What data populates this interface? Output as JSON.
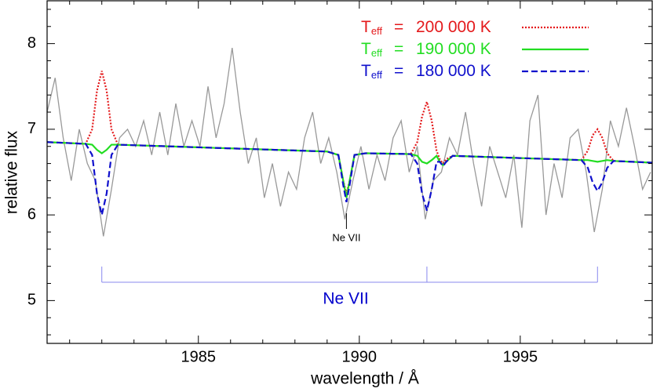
{
  "chart_data": {
    "type": "line",
    "xlabel": "wavelength / Å",
    "ylabel": "relative flux",
    "xlim": [
      1980.3,
      1999.1
    ],
    "ylim": [
      4.5,
      8.5
    ],
    "xticks": [
      1985,
      1990,
      1995
    ],
    "yticks": [
      5,
      6,
      7,
      8
    ],
    "xminorticks": [
      1981,
      1982,
      1983,
      1984,
      1986,
      1987,
      1988,
      1989,
      1991,
      1992,
      1993,
      1994,
      1996,
      1997,
      1998
    ],
    "yminorticks": [
      4.6,
      4.8,
      5.2,
      5.4,
      5.6,
      5.8,
      6.2,
      6.4,
      6.6,
      6.8,
      7.2,
      7.4,
      7.6,
      7.8,
      8.2,
      8.4
    ],
    "legend_prefix": {
      "main": "T",
      "sub": "eff",
      "eq": "="
    },
    "annotations": [
      {
        "text": "Ne VII",
        "x": 1989.6
      }
    ],
    "line_group": {
      "label": "Ne VII",
      "x": [
        1982.0,
        1992.1,
        1997.4
      ],
      "color": "#0000cc"
    },
    "series": [
      {
        "color": "#999999",
        "dash": "solid",
        "x": [
          1980.3,
          1980.55,
          1980.8,
          1981.05,
          1981.3,
          1981.55,
          1981.8,
          1982.05,
          1982.3,
          1982.55,
          1982.8,
          1983.05,
          1983.3,
          1983.55,
          1983.8,
          1984.05,
          1984.3,
          1984.55,
          1984.8,
          1985.05,
          1985.3,
          1985.55,
          1985.8,
          1986.05,
          1986.3,
          1986.55,
          1986.8,
          1987.05,
          1987.3,
          1987.55,
          1987.8,
          1988.05,
          1988.3,
          1988.55,
          1988.8,
          1989.05,
          1989.3,
          1989.55,
          1989.8,
          1990.05,
          1990.3,
          1990.55,
          1990.8,
          1991.05,
          1991.3,
          1991.55,
          1991.8,
          1992.05,
          1992.3,
          1992.55,
          1992.8,
          1993.05,
          1993.3,
          1993.55,
          1993.8,
          1994.05,
          1994.3,
          1994.55,
          1994.8,
          1995.05,
          1995.3,
          1995.55,
          1995.8,
          1996.05,
          1996.3,
          1996.55,
          1996.8,
          1997.05,
          1997.3,
          1997.55,
          1997.8,
          1998.05,
          1998.3,
          1998.55,
          1998.8,
          1999.05
        ],
        "values": [
          7.2,
          7.6,
          6.9,
          6.4,
          7.0,
          6.6,
          6.4,
          5.75,
          6.3,
          6.9,
          7.0,
          6.8,
          7.1,
          6.7,
          7.2,
          6.7,
          7.3,
          6.8,
          7.1,
          6.8,
          7.5,
          6.9,
          7.3,
          7.95,
          7.2,
          6.6,
          6.9,
          6.2,
          6.6,
          6.1,
          6.5,
          6.3,
          6.9,
          7.2,
          6.6,
          6.9,
          6.5,
          5.95,
          6.4,
          6.8,
          6.3,
          6.7,
          6.4,
          6.9,
          7.1,
          6.5,
          6.8,
          5.95,
          6.4,
          6.5,
          6.9,
          6.7,
          7.2,
          6.6,
          6.1,
          6.8,
          6.5,
          6.2,
          6.7,
          5.85,
          7.1,
          7.4,
          6.0,
          6.6,
          6.2,
          6.9,
          7.0,
          6.5,
          5.8,
          6.3,
          7.1,
          6.8,
          7.25,
          6.8,
          6.3,
          6.5
        ]
      },
      {
        "name": "200 000 K",
        "color": "#e41a1c",
        "dash": "dotted",
        "x": [
          1980.3,
          1981.5,
          1981.7,
          1981.85,
          1982.0,
          1982.15,
          1982.3,
          1982.5,
          1989.0,
          1989.35,
          1989.5,
          1989.6,
          1989.7,
          1989.85,
          1990.2,
          1991.6,
          1991.8,
          1991.95,
          1992.1,
          1992.25,
          1992.4,
          1992.5,
          1992.6,
          1992.7,
          1992.9,
          1996.9,
          1997.1,
          1997.25,
          1997.4,
          1997.55,
          1997.7,
          1997.9,
          1999.1
        ],
        "values": [
          6.85,
          6.83,
          7.0,
          7.45,
          7.68,
          7.45,
          7.0,
          6.82,
          6.74,
          6.7,
          6.4,
          6.25,
          6.4,
          6.7,
          6.72,
          6.71,
          6.85,
          7.15,
          7.32,
          7.1,
          6.75,
          6.65,
          6.6,
          6.65,
          6.69,
          6.64,
          6.75,
          6.93,
          7.0,
          6.9,
          6.72,
          6.63,
          6.61
        ]
      },
      {
        "name": "190 000 K",
        "color": "#22dd22",
        "dash": "solid",
        "x": [
          1980.3,
          1981.5,
          1981.7,
          1981.85,
          1982.0,
          1982.15,
          1982.3,
          1982.5,
          1989.0,
          1989.35,
          1989.5,
          1989.6,
          1989.7,
          1989.85,
          1990.2,
          1991.6,
          1991.8,
          1991.95,
          1992.1,
          1992.25,
          1992.4,
          1992.5,
          1992.6,
          1992.7,
          1992.9,
          1996.9,
          1997.1,
          1997.25,
          1997.4,
          1997.55,
          1997.7,
          1997.9,
          1999.1
        ],
        "values": [
          6.85,
          6.83,
          6.82,
          6.76,
          6.72,
          6.76,
          6.82,
          6.82,
          6.74,
          6.7,
          6.4,
          6.2,
          6.4,
          6.7,
          6.72,
          6.71,
          6.69,
          6.62,
          6.6,
          6.64,
          6.69,
          6.62,
          6.58,
          6.62,
          6.69,
          6.64,
          6.64,
          6.63,
          6.62,
          6.63,
          6.64,
          6.63,
          6.61
        ]
      },
      {
        "name": "180 000 K",
        "color": "#1010cc",
        "dash": "dashed",
        "x": [
          1980.3,
          1981.5,
          1981.7,
          1981.85,
          1982.0,
          1982.15,
          1982.3,
          1982.5,
          1989.0,
          1989.35,
          1989.5,
          1989.6,
          1989.7,
          1989.85,
          1990.2,
          1991.6,
          1991.8,
          1991.95,
          1992.1,
          1992.25,
          1992.4,
          1992.5,
          1992.6,
          1992.7,
          1992.9,
          1996.9,
          1997.1,
          1997.25,
          1997.4,
          1997.55,
          1997.7,
          1997.9,
          1999.1
        ],
        "values": [
          6.85,
          6.83,
          6.7,
          6.25,
          6.0,
          6.25,
          6.7,
          6.82,
          6.74,
          6.7,
          6.35,
          6.15,
          6.35,
          6.7,
          6.72,
          6.71,
          6.6,
          6.25,
          6.05,
          6.3,
          6.62,
          6.62,
          6.57,
          6.62,
          6.69,
          6.64,
          6.55,
          6.38,
          6.28,
          6.38,
          6.55,
          6.63,
          6.61
        ]
      }
    ]
  }
}
